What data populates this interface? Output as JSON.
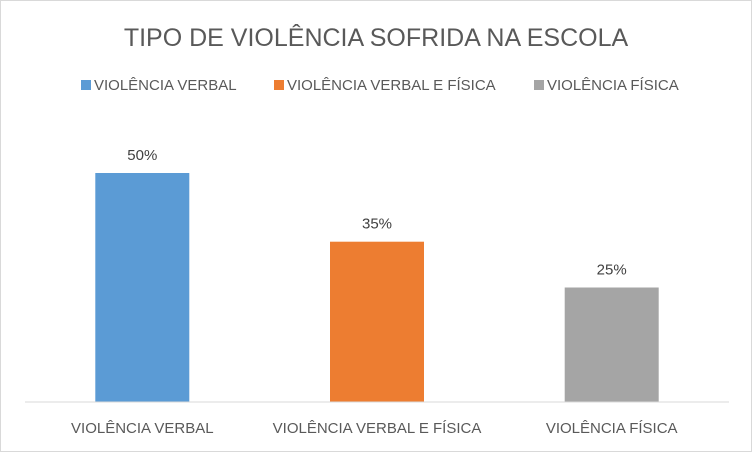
{
  "chart_data": {
    "type": "bar",
    "title": "TIPO DE VIOLÊNCIA SOFRIDA NA ESCOLA",
    "categories": [
      "VIOLÊNCIA VERBAL",
      "VIOLÊNCIA VERBAL E FÍSICA",
      "VIOLÊNCIA FÍSICA"
    ],
    "values": [
      50,
      35,
      25
    ],
    "data_labels": [
      "50%",
      "35%",
      "25%"
    ],
    "colors": [
      "#5b9bd5",
      "#ed7d31",
      "#a5a5a5"
    ],
    "legend": {
      "position": "top",
      "entries": [
        "VIOLÊNCIA VERBAL",
        "VIOLÊNCIA VERBAL E FÍSICA",
        "VIOLÊNCIA FÍSICA"
      ]
    },
    "ylim": [
      0,
      50
    ],
    "grid": false,
    "xlabel": "",
    "ylabel": ""
  }
}
